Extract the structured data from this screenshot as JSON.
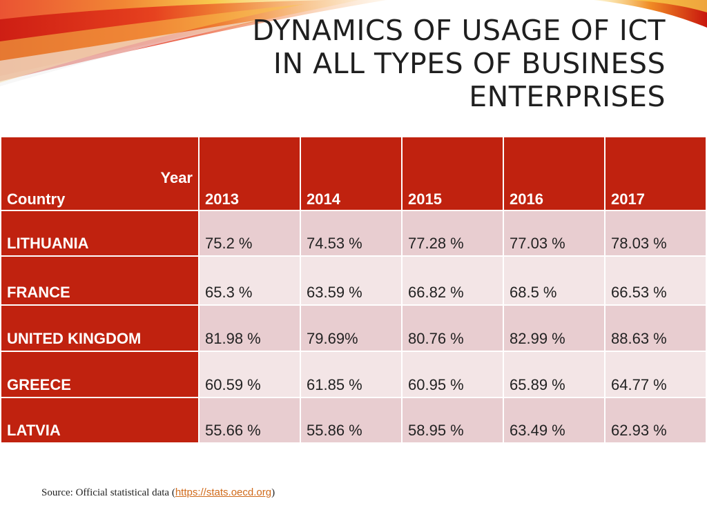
{
  "title_lines": [
    "DYNAMICS OF USAGE OF ICT",
    "IN ALL TYPES OF BUSINESS",
    "ENTERPRISES"
  ],
  "table": {
    "year_label": "Year",
    "country_label": "Country",
    "years": [
      "2013",
      "2014",
      "2015",
      "2016",
      "2017"
    ],
    "rows": [
      {
        "country": "LITHUANIA",
        "values": [
          "75.2 %",
          "74.53 %",
          "77.28 %",
          "77.03 %",
          "78.03 %"
        ]
      },
      {
        "country": "FRANCE",
        "values": [
          "65.3 %",
          "63.59 %",
          "66.82 %",
          "68.5 %",
          "66.53 %"
        ]
      },
      {
        "country": "UNITED KINGDOM",
        "values": [
          "81.98 %",
          "79.69%",
          "80.76 %",
          "82.99 %",
          "88.63 %"
        ]
      },
      {
        "country": "GREECE",
        "values": [
          "60.59 %",
          "61.85 %",
          "60.95 %",
          "65.89 %",
          "64.77 %"
        ]
      },
      {
        "country": "LATVIA",
        "values": [
          "55.66 %",
          "55.86 %",
          "58.95 %",
          "63.49 %",
          "62.93 %"
        ]
      }
    ]
  },
  "source": {
    "prefix": "Source: Official statistical data (",
    "link_text": "https://stats.oecd.org",
    "suffix": ")"
  },
  "colors": {
    "header_red": "#c0220f",
    "row_pink": "#e8cdd0",
    "row_light": "#f3e5e6",
    "link_orange": "#d06a1a"
  }
}
